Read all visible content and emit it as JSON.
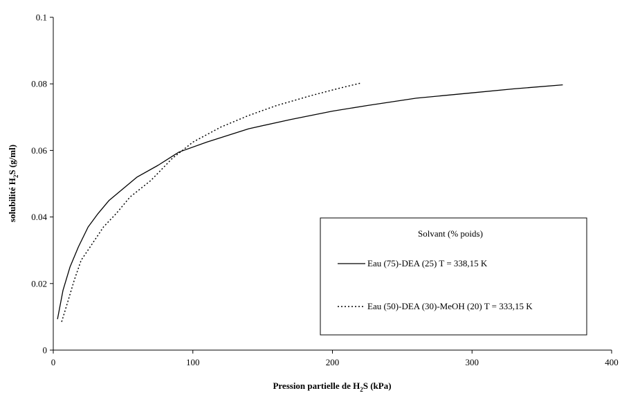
{
  "chart_data": {
    "type": "line",
    "title": "",
    "xlabel": {
      "main": "Pression partielle de H",
      "sub": "2",
      "rest": "S (kPa)"
    },
    "ylabel": {
      "main": "solubilité H",
      "sub": "2",
      "rest": "S (g/ml)"
    },
    "xlim": [
      0,
      400
    ],
    "ylim": [
      0,
      0.1
    ],
    "xticks": [
      0,
      100,
      200,
      300,
      400
    ],
    "yticks": [
      0,
      0.02,
      0.04,
      0.06,
      0.08,
      0.1
    ],
    "xtick_labels": [
      "0",
      "100",
      "200",
      "300",
      "400"
    ],
    "ytick_labels": [
      "0",
      "0.02",
      "0.04",
      "0.06",
      "0.08",
      "0.1"
    ],
    "grid": false,
    "legend": {
      "title": "Solvant (% poids)",
      "position": "lower-right"
    },
    "series": [
      {
        "name": "Eau (75)-DEA (25)  T = 338,15 K",
        "style": "solid",
        "color": "#000000",
        "points": [
          [
            3,
            0.0093
          ],
          [
            7,
            0.018
          ],
          [
            12,
            0.025
          ],
          [
            18,
            0.031
          ],
          [
            25,
            0.037
          ],
          [
            32,
            0.041
          ],
          [
            40,
            0.045
          ],
          [
            50,
            0.0485
          ],
          [
            60,
            0.052
          ],
          [
            75,
            0.0555
          ],
          [
            90,
            0.0595
          ],
          [
            110,
            0.0625
          ],
          [
            140,
            0.0665
          ],
          [
            170,
            0.0693
          ],
          [
            200,
            0.0718
          ],
          [
            225,
            0.0735
          ],
          [
            260,
            0.0757
          ],
          [
            300,
            0.0773
          ],
          [
            330,
            0.0785
          ],
          [
            365,
            0.0797
          ]
        ]
      },
      {
        "name": "Eau (50)-DEA (30)-MeOH (20)  T = 333,15 K",
        "style": "dotted",
        "color": "#000000",
        "points": [
          [
            6,
            0.0085
          ],
          [
            10,
            0.014
          ],
          [
            15,
            0.021
          ],
          [
            20,
            0.027
          ],
          [
            28,
            0.032
          ],
          [
            36,
            0.037
          ],
          [
            45,
            0.041
          ],
          [
            55,
            0.046
          ],
          [
            70,
            0.051
          ],
          [
            85,
            0.0575
          ],
          [
            100,
            0.0625
          ],
          [
            120,
            0.067
          ],
          [
            140,
            0.0705
          ],
          [
            160,
            0.0735
          ],
          [
            185,
            0.0765
          ],
          [
            205,
            0.0787
          ],
          [
            220,
            0.0802
          ]
        ]
      }
    ]
  }
}
